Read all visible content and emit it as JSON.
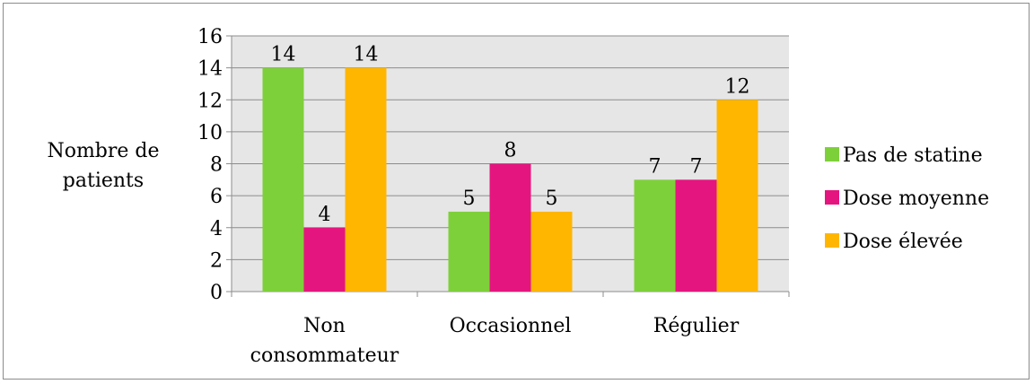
{
  "chart_data": {
    "type": "bar",
    "ylabel": [
      "Nombre de",
      "patients"
    ],
    "ylim": [
      0,
      16
    ],
    "yticks": [
      0,
      2,
      4,
      6,
      8,
      10,
      12,
      14,
      16
    ],
    "categories": [
      [
        "Non",
        "consommateur"
      ],
      [
        "Occasionnel"
      ],
      [
        "Régulier"
      ]
    ],
    "series": [
      {
        "name": "Pas de statine",
        "color": "#7ED03B",
        "values": [
          14,
          5,
          7
        ]
      },
      {
        "name": "Dose moyenne",
        "color": "#E5157F",
        "values": [
          4,
          8,
          7
        ]
      },
      {
        "name": "Dose élevée",
        "color": "#FFB600",
        "values": [
          14,
          5,
          12
        ]
      }
    ],
    "grid": true,
    "plot_background": "#E6E6E6",
    "legend_position": "right"
  }
}
